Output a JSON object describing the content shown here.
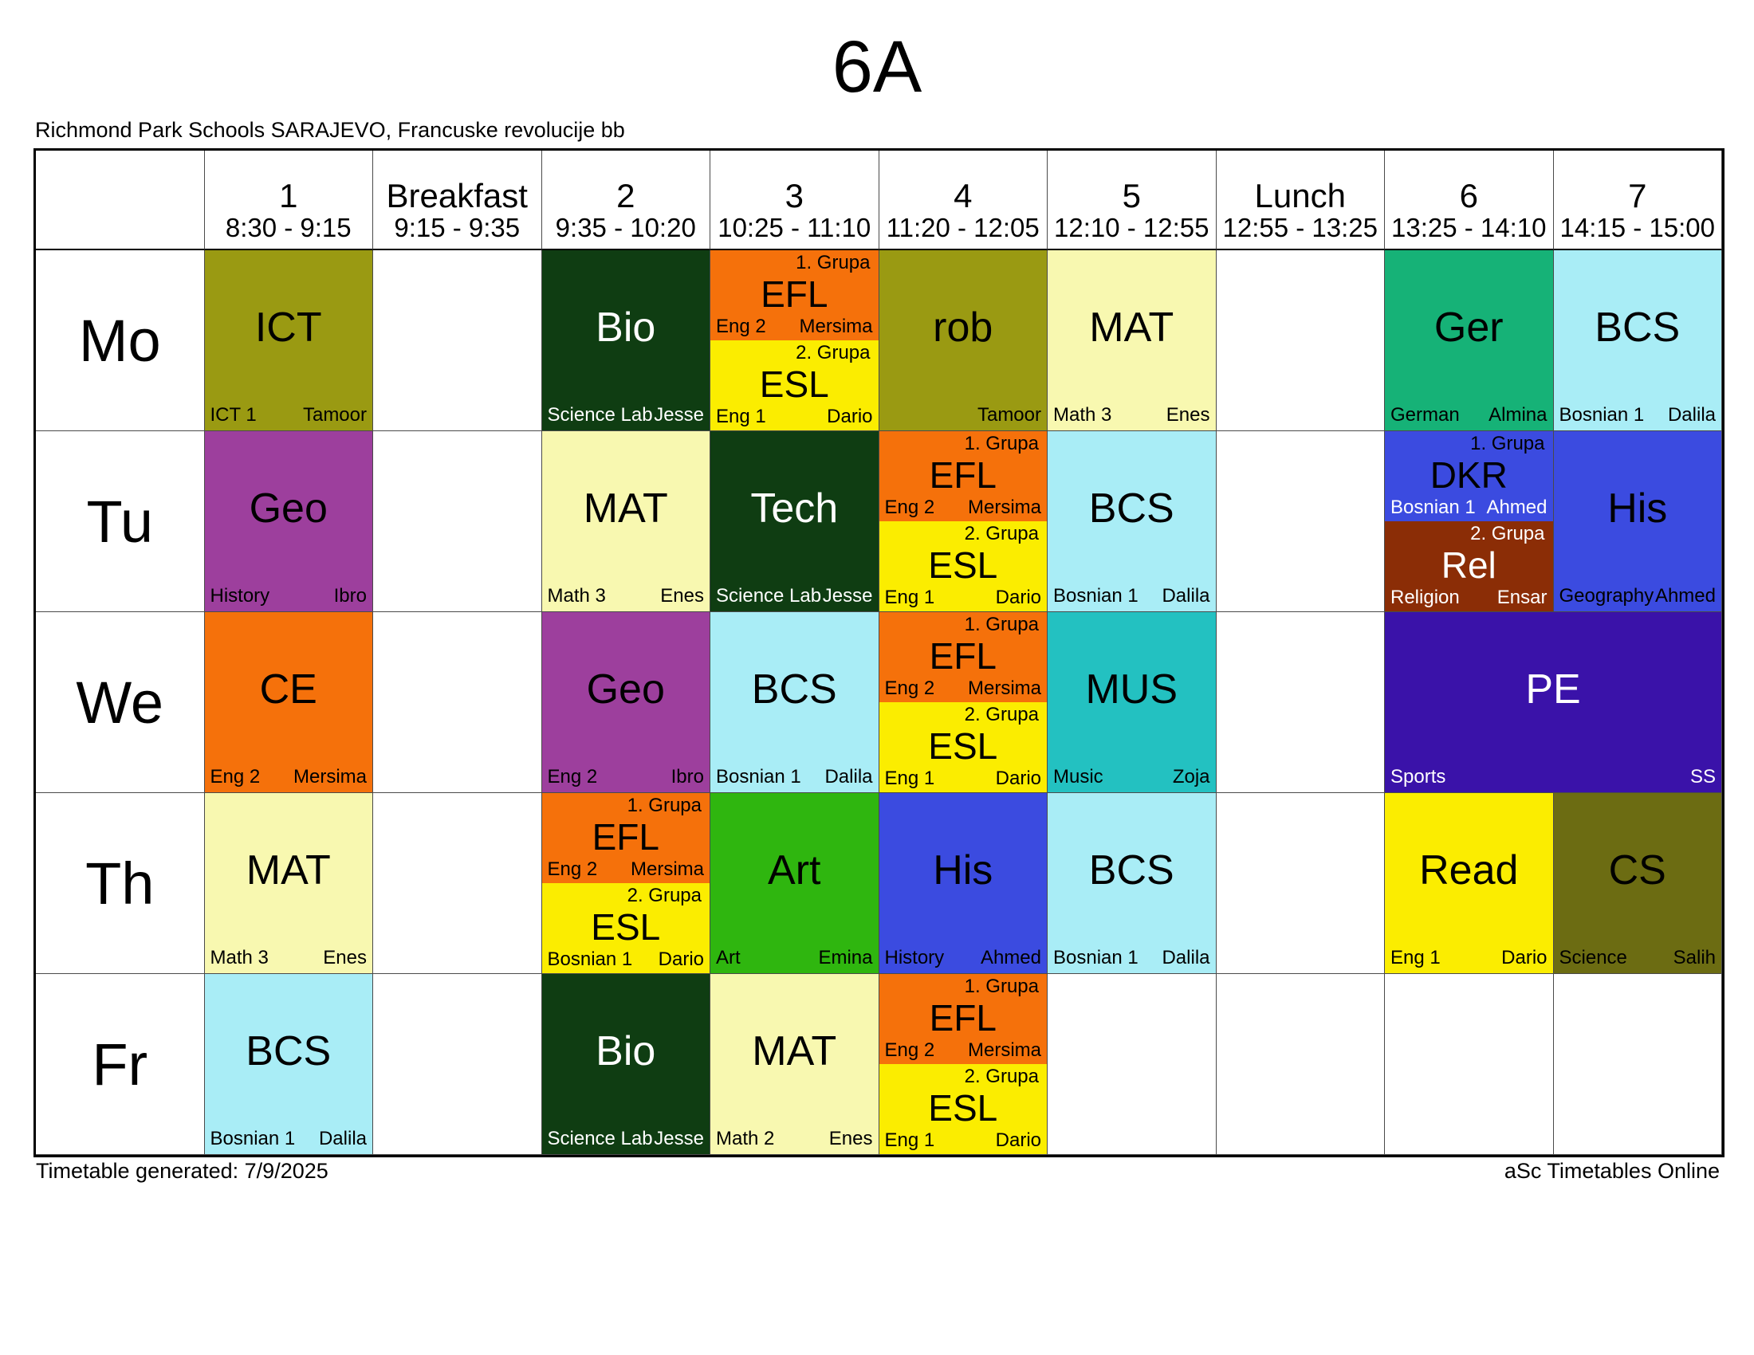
{
  "page": {
    "title": "6A",
    "subtitle": "Richmond Park Schools SARAJEVO, Francuske revolucije bb",
    "footer_left": "Timetable generated: 7/9/2025",
    "footer_right": "aSc Timetables Online"
  },
  "palette": {
    "olive": "#9a9a12",
    "darkgreen": "#0f3d12",
    "orange": "#f5710b",
    "yellow": "#fbed00",
    "paleyellow": "#f8f8b0",
    "teal": "#16b277",
    "cyan": "#a9edf6",
    "purple": "#9d3f9d",
    "blue": "#3b4be0",
    "brown": "#8b2d06",
    "turquoise": "#23c1c1",
    "indigo": "#3a12a9",
    "green": "#2fb60f",
    "darkolive": "#6c6c12"
  },
  "header": {
    "columns": [
      {
        "num": "1",
        "time": "8:30 - 9:15"
      },
      {
        "num": "Breakfast",
        "time": "9:15 - 9:35"
      },
      {
        "num": "2",
        "time": "9:35 - 10:20"
      },
      {
        "num": "3",
        "time": "10:25 - 11:10"
      },
      {
        "num": "4",
        "time": "11:20 - 12:05"
      },
      {
        "num": "5",
        "time": "12:10 - 12:55"
      },
      {
        "num": "Lunch",
        "time": "12:55 - 13:25"
      },
      {
        "num": "6",
        "time": "13:25 - 14:10"
      },
      {
        "num": "7",
        "time": "14:15 - 15:00"
      }
    ]
  },
  "days": [
    {
      "label": "Mo",
      "cells": [
        {
          "type": "single",
          "subject": "ICT",
          "room": "ICT 1",
          "teacher": "Tamoor",
          "color": "olive",
          "text": "dark"
        },
        {
          "type": "empty"
        },
        {
          "type": "single",
          "subject": "Bio",
          "room": "Science Lab",
          "teacher": "Jesse",
          "color": "darkgreen",
          "text": "light"
        },
        {
          "type": "split",
          "top": {
            "group": "1. Grupa",
            "subject": "EFL",
            "room": "Eng 2",
            "teacher": "Mersima",
            "color": "orange",
            "text": "dark"
          },
          "bottom": {
            "group": "2. Grupa",
            "subject": "ESL",
            "room": "Eng 1",
            "teacher": "Dario",
            "color": "yellow",
            "text": "dark"
          }
        },
        {
          "type": "single",
          "subject": "rob",
          "room": "",
          "teacher": "Tamoor",
          "color": "olive",
          "text": "dark"
        },
        {
          "type": "single",
          "subject": "MAT",
          "room": "Math 3",
          "teacher": "Enes",
          "color": "paleyellow",
          "text": "dark"
        },
        {
          "type": "empty"
        },
        {
          "type": "single",
          "subject": "Ger",
          "room": "German",
          "teacher": "Almina",
          "color": "teal",
          "text": "dark"
        },
        {
          "type": "single",
          "subject": "BCS",
          "room": "Bosnian 1",
          "teacher": "Dalila",
          "color": "cyan",
          "text": "dark"
        }
      ]
    },
    {
      "label": "Tu",
      "cells": [
        {
          "type": "single",
          "subject": "Geo",
          "room": "History",
          "teacher": "Ibro",
          "color": "purple",
          "text": "dark"
        },
        {
          "type": "empty"
        },
        {
          "type": "single",
          "subject": "MAT",
          "room": "Math 3",
          "teacher": "Enes",
          "color": "paleyellow",
          "text": "dark"
        },
        {
          "type": "single",
          "subject": "Tech",
          "room": "Science Lab",
          "teacher": "Jesse",
          "color": "darkgreen",
          "text": "light"
        },
        {
          "type": "split",
          "top": {
            "group": "1. Grupa",
            "subject": "EFL",
            "room": "Eng 2",
            "teacher": "Mersima",
            "color": "orange",
            "text": "dark"
          },
          "bottom": {
            "group": "2. Grupa",
            "subject": "ESL",
            "room": "Eng 1",
            "teacher": "Dario",
            "color": "yellow",
            "text": "dark"
          }
        },
        {
          "type": "single",
          "subject": "BCS",
          "room": "Bosnian 1",
          "teacher": "Dalila",
          "color": "cyan",
          "text": "dark"
        },
        {
          "type": "empty"
        },
        {
          "type": "split",
          "top": {
            "group": "1. Grupa",
            "subject": "DKR",
            "room": "Bosnian 1",
            "teacher": "Ahmed",
            "color": "blue",
            "text": "dark",
            "labels": "light"
          },
          "bottom": {
            "group": "2. Grupa",
            "subject": "Rel",
            "room": "Religion",
            "teacher": "Ensar",
            "color": "brown",
            "text": "light"
          }
        },
        {
          "type": "single",
          "subject": "His",
          "room": "Geography",
          "teacher": "Ahmed",
          "color": "blue",
          "text": "dark"
        }
      ]
    },
    {
      "label": "We",
      "cells": [
        {
          "type": "single",
          "subject": "CE",
          "room": "Eng 2",
          "teacher": "Mersima",
          "color": "orange",
          "text": "dark"
        },
        {
          "type": "empty"
        },
        {
          "type": "single",
          "subject": "Geo",
          "room": "Eng 2",
          "teacher": "Ibro",
          "color": "purple",
          "text": "dark"
        },
        {
          "type": "single",
          "subject": "BCS",
          "room": "Bosnian 1",
          "teacher": "Dalila",
          "color": "cyan",
          "text": "dark"
        },
        {
          "type": "split",
          "top": {
            "group": "1. Grupa",
            "subject": "EFL",
            "room": "Eng 2",
            "teacher": "Mersima",
            "color": "orange",
            "text": "dark"
          },
          "bottom": {
            "group": "2. Grupa",
            "subject": "ESL",
            "room": "Eng 1",
            "teacher": "Dario",
            "color": "yellow",
            "text": "dark"
          }
        },
        {
          "type": "single",
          "subject": "MUS",
          "room": "Music",
          "teacher": "Zoja",
          "color": "turquoise",
          "text": "dark"
        },
        {
          "type": "empty"
        },
        {
          "type": "single",
          "subject": "PE",
          "room": "Sports",
          "teacher": "SS",
          "color": "indigo",
          "text": "light",
          "span": 2
        }
      ]
    },
    {
      "label": "Th",
      "cells": [
        {
          "type": "single",
          "subject": "MAT",
          "room": "Math 3",
          "teacher": "Enes",
          "color": "paleyellow",
          "text": "dark"
        },
        {
          "type": "empty"
        },
        {
          "type": "split",
          "top": {
            "group": "1. Grupa",
            "subject": "EFL",
            "room": "Eng 2",
            "teacher": "Mersima",
            "color": "orange",
            "text": "dark"
          },
          "bottom": {
            "group": "2. Grupa",
            "subject": "ESL",
            "room": "Bosnian 1",
            "teacher": "Dario",
            "color": "yellow",
            "text": "dark"
          }
        },
        {
          "type": "single",
          "subject": "Art",
          "room": "Art",
          "teacher": "Emina",
          "color": "green",
          "text": "dark"
        },
        {
          "type": "single",
          "subject": "His",
          "room": "History",
          "teacher": "Ahmed",
          "color": "blue",
          "text": "dark"
        },
        {
          "type": "single",
          "subject": "BCS",
          "room": "Bosnian 1",
          "teacher": "Dalila",
          "color": "cyan",
          "text": "dark"
        },
        {
          "type": "empty"
        },
        {
          "type": "single",
          "subject": "Read",
          "room": "Eng 1",
          "teacher": "Dario",
          "color": "yellow",
          "text": "dark"
        },
        {
          "type": "single",
          "subject": "CS",
          "room": "Science",
          "teacher": "Salih",
          "color": "darkolive",
          "text": "dark"
        }
      ]
    },
    {
      "label": "Fr",
      "cells": [
        {
          "type": "single",
          "subject": "BCS",
          "room": "Bosnian 1",
          "teacher": "Dalila",
          "color": "cyan",
          "text": "dark"
        },
        {
          "type": "empty"
        },
        {
          "type": "single",
          "subject": "Bio",
          "room": "Science Lab",
          "teacher": "Jesse",
          "color": "darkgreen",
          "text": "light"
        },
        {
          "type": "single",
          "subject": "MAT",
          "room": "Math 2",
          "teacher": "Enes",
          "color": "paleyellow",
          "text": "dark"
        },
        {
          "type": "split",
          "top": {
            "group": "1. Grupa",
            "subject": "EFL",
            "room": "Eng 2",
            "teacher": "Mersima",
            "color": "orange",
            "text": "dark"
          },
          "bottom": {
            "group": "2. Grupa",
            "subject": "ESL",
            "room": "Eng 1",
            "teacher": "Dario",
            "color": "yellow",
            "text": "dark"
          }
        },
        {
          "type": "empty"
        },
        {
          "type": "empty"
        },
        {
          "type": "empty"
        },
        {
          "type": "empty"
        }
      ]
    }
  ]
}
